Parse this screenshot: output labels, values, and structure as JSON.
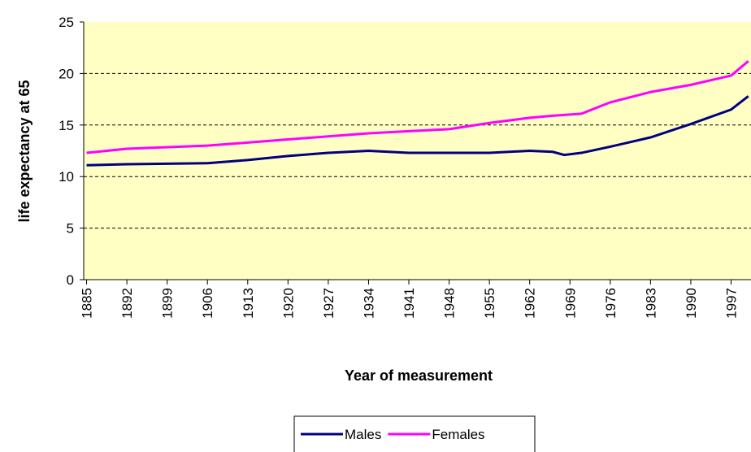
{
  "chart_data": {
    "type": "line",
    "xlabel": "Year of measurement",
    "ylabel": "life expectancy at 65",
    "series": [
      {
        "name": "Males",
        "color": "#000080",
        "x": [
          1885,
          1892,
          1906,
          1913,
          1920,
          1927,
          1934,
          1941,
          1948,
          1955,
          1962,
          1966,
          1968,
          1971,
          1976,
          1983,
          1990,
          1997,
          2000
        ],
        "values": [
          11.1,
          11.2,
          11.3,
          11.6,
          12.0,
          12.3,
          12.5,
          12.3,
          12.3,
          12.3,
          12.5,
          12.4,
          12.1,
          12.3,
          12.9,
          13.8,
          15.1,
          16.5,
          17.8
        ]
      },
      {
        "name": "Females",
        "color": "#ff00ff",
        "x": [
          1885,
          1892,
          1906,
          1913,
          1920,
          1927,
          1934,
          1941,
          1948,
          1955,
          1962,
          1966,
          1971,
          1976,
          1983,
          1990,
          1997,
          2000
        ],
        "values": [
          12.3,
          12.7,
          13.0,
          13.3,
          13.6,
          13.9,
          14.2,
          14.4,
          14.6,
          15.2,
          15.7,
          15.9,
          16.1,
          17.2,
          18.2,
          18.9,
          19.8,
          21.2
        ]
      }
    ],
    "xlim": [
      1884.5,
      2000.5
    ],
    "xticks": [
      1885,
      1892,
      1899,
      1906,
      1913,
      1920,
      1927,
      1934,
      1941,
      1948,
      1955,
      1962,
      1969,
      1976,
      1983,
      1990,
      1997
    ],
    "ylim": [
      0,
      25
    ],
    "yticks": [
      0,
      5,
      10,
      15,
      20,
      25
    ],
    "grid": true,
    "legend": "bottom",
    "plot_background": "#ffffc4"
  }
}
